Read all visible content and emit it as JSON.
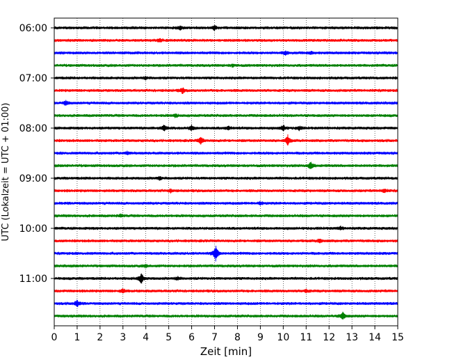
{
  "chart_data": {
    "type": "line",
    "title": "",
    "xlabel": "Zeit  [min]",
    "ylabel": "UTC (Lokalzeit = UTC + 01:00)",
    "xlim": [
      0,
      15
    ],
    "x_ticks": [
      0,
      1,
      2,
      3,
      4,
      5,
      6,
      7,
      8,
      9,
      10,
      11,
      12,
      13,
      14,
      15
    ],
    "grid": "vertical dotted",
    "legend": "none",
    "y_ticks": [
      "06:00",
      "07:00",
      "08:00",
      "09:00",
      "10:00",
      "11:00"
    ],
    "colors": [
      "#000000",
      "#ff0000",
      "#0000ff",
      "#008000"
    ],
    "series": [
      {
        "start": "06:00",
        "color": "#000000",
        "events": [
          {
            "t": 5.5,
            "amp": 0.25
          },
          {
            "t": 7.0,
            "amp": 0.3
          }
        ]
      },
      {
        "start": "06:15",
        "color": "#ff0000",
        "events": [
          {
            "t": 4.6,
            "amp": 0.2
          }
        ]
      },
      {
        "start": "06:30",
        "color": "#0000ff",
        "events": [
          {
            "t": 10.1,
            "amp": 0.25
          },
          {
            "t": 11.2,
            "amp": 0.2
          }
        ]
      },
      {
        "start": "06:45",
        "color": "#008000",
        "events": [
          {
            "t": 7.8,
            "amp": 0.15
          }
        ]
      },
      {
        "start": "07:00",
        "color": "#000000",
        "events": [
          {
            "t": 4.0,
            "amp": 0.15
          }
        ]
      },
      {
        "start": "07:15",
        "color": "#ff0000",
        "events": [
          {
            "t": 5.6,
            "amp": 0.35
          }
        ]
      },
      {
        "start": "07:30",
        "color": "#0000ff",
        "events": [
          {
            "t": 0.5,
            "amp": 0.3
          }
        ]
      },
      {
        "start": "07:45",
        "color": "#008000",
        "events": [
          {
            "t": 5.3,
            "amp": 0.2
          }
        ]
      },
      {
        "start": "08:00",
        "color": "#000000",
        "events": [
          {
            "t": 4.8,
            "amp": 0.45
          },
          {
            "t": 6.0,
            "amp": 0.35
          },
          {
            "t": 7.6,
            "amp": 0.25
          },
          {
            "t": 10.0,
            "amp": 0.4
          },
          {
            "t": 10.7,
            "amp": 0.25
          }
        ]
      },
      {
        "start": "08:15",
        "color": "#ff0000",
        "events": [
          {
            "t": 6.4,
            "amp": 0.55
          },
          {
            "t": 10.2,
            "amp": 0.7
          }
        ]
      },
      {
        "start": "08:30",
        "color": "#0000ff",
        "events": [
          {
            "t": 3.2,
            "amp": 0.2
          }
        ]
      },
      {
        "start": "08:45",
        "color": "#008000",
        "events": [
          {
            "t": 11.2,
            "amp": 0.55
          }
        ]
      },
      {
        "start": "09:00",
        "color": "#000000",
        "events": [
          {
            "t": 4.6,
            "amp": 0.2
          }
        ]
      },
      {
        "start": "09:15",
        "color": "#ff0000",
        "events": [
          {
            "t": 5.1,
            "amp": 0.2
          },
          {
            "t": 14.4,
            "amp": 0.25
          }
        ]
      },
      {
        "start": "09:30",
        "color": "#0000ff",
        "events": [
          {
            "t": 9.0,
            "amp": 0.2
          }
        ]
      },
      {
        "start": "09:45",
        "color": "#008000",
        "events": [
          {
            "t": 2.9,
            "amp": 0.15
          }
        ]
      },
      {
        "start": "10:00",
        "color": "#000000",
        "events": [
          {
            "t": 12.5,
            "amp": 0.2
          }
        ]
      },
      {
        "start": "10:15",
        "color": "#ff0000",
        "events": [
          {
            "t": 11.6,
            "amp": 0.25
          }
        ]
      },
      {
        "start": "10:30",
        "color": "#0000ff",
        "events": [
          {
            "t": 7.05,
            "amp": 1.1
          }
        ]
      },
      {
        "start": "10:45",
        "color": "#008000",
        "events": [
          {
            "t": 4.0,
            "amp": 0.15
          }
        ]
      },
      {
        "start": "11:00",
        "color": "#000000",
        "events": [
          {
            "t": 3.8,
            "amp": 0.75
          },
          {
            "t": 5.4,
            "amp": 0.2
          }
        ]
      },
      {
        "start": "11:15",
        "color": "#ff0000",
        "events": [
          {
            "t": 3.0,
            "amp": 0.25
          },
          {
            "t": 11.0,
            "amp": 0.2
          }
        ]
      },
      {
        "start": "11:30",
        "color": "#0000ff",
        "events": [
          {
            "t": 1.0,
            "amp": 0.45
          }
        ]
      },
      {
        "start": "11:45",
        "color": "#008000",
        "events": [
          {
            "t": 12.6,
            "amp": 0.5
          }
        ]
      }
    ]
  }
}
